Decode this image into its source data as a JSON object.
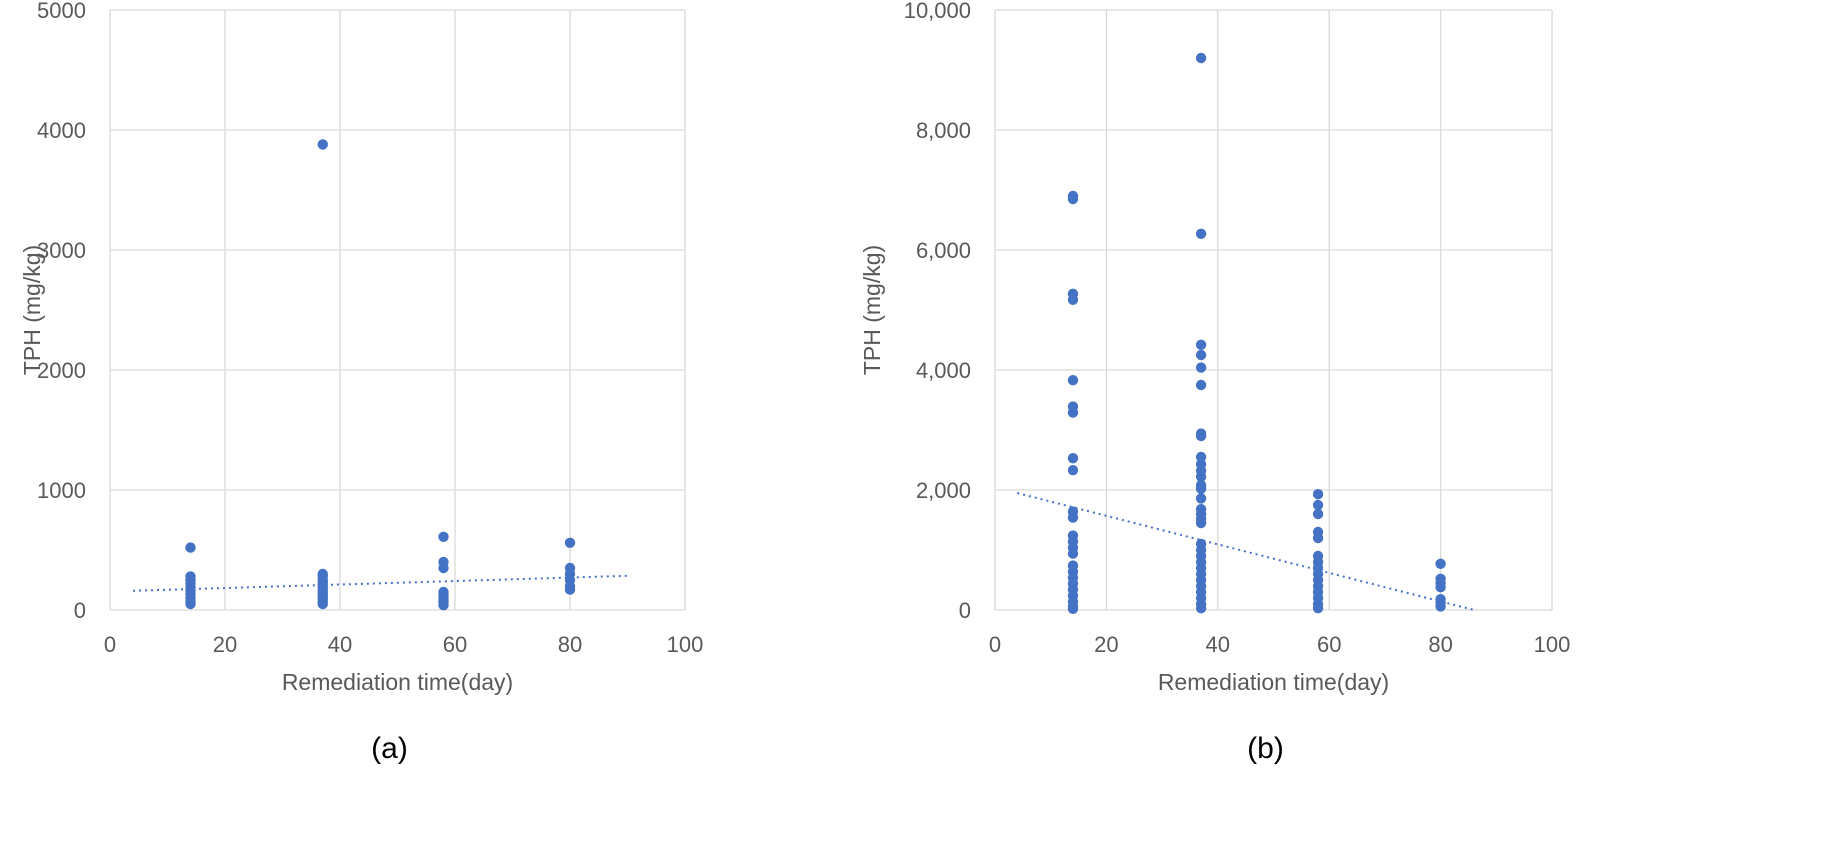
{
  "chart_data": [
    {
      "type": "scatter",
      "panel_label": "(a)",
      "xlabel": "Remediation time(day)",
      "ylabel": "TPH (mg/kg)",
      "xlim": [
        0,
        100
      ],
      "ylim": [
        0,
        5000
      ],
      "x_ticks": [
        "0",
        "20",
        "40",
        "60",
        "80",
        "100"
      ],
      "y_ticks": [
        "0",
        "1000",
        "2000",
        "3000",
        "4000",
        "5000"
      ],
      "grid": true,
      "series": [
        {
          "color": "#4472c4",
          "points": [
            [
              14,
              520
            ],
            [
              14,
              280
            ],
            [
              14,
              250
            ],
            [
              14,
              220
            ],
            [
              14,
              190
            ],
            [
              14,
              160
            ],
            [
              14,
              130
            ],
            [
              14,
              100
            ],
            [
              14,
              70
            ],
            [
              14,
              50
            ],
            [
              37,
              3880
            ],
            [
              37,
              300
            ],
            [
              37,
              280
            ],
            [
              37,
              250
            ],
            [
              37,
              230
            ],
            [
              37,
              210
            ],
            [
              37,
              190
            ],
            [
              37,
              170
            ],
            [
              37,
              150
            ],
            [
              37,
              130
            ],
            [
              37,
              110
            ],
            [
              37,
              90
            ],
            [
              37,
              70
            ],
            [
              37,
              50
            ],
            [
              58,
              610
            ],
            [
              58,
              400
            ],
            [
              58,
              350
            ],
            [
              58,
              150
            ],
            [
              58,
              120
            ],
            [
              58,
              100
            ],
            [
              58,
              80
            ],
            [
              58,
              60
            ],
            [
              58,
              40
            ],
            [
              80,
              560
            ],
            [
              80,
              350
            ],
            [
              80,
              300
            ],
            [
              80,
              250
            ],
            [
              80,
              200
            ],
            [
              80,
              170
            ]
          ]
        }
      ],
      "trendline": {
        "x": [
          4,
          90
        ],
        "y": [
          160,
          285
        ],
        "style": "dotted"
      }
    },
    {
      "type": "scatter",
      "panel_label": "(b)",
      "xlabel": "Remediation time(day)",
      "ylabel": "TPH (mg/kg)",
      "xlim": [
        0,
        100
      ],
      "ylim": [
        0,
        10000
      ],
      "x_ticks": [
        "0",
        "20",
        "40",
        "60",
        "80",
        "100"
      ],
      "y_ticks": [
        "0",
        "2,000",
        "4,000",
        "6,000",
        "8,000",
        "10,000"
      ],
      "grid": true,
      "series": [
        {
          "color": "#4472c4",
          "points": [
            [
              14,
              6900
            ],
            [
              14,
              6850
            ],
            [
              14,
              5270
            ],
            [
              14,
              5170
            ],
            [
              14,
              3830
            ],
            [
              14,
              3390
            ],
            [
              14,
              3290
            ],
            [
              14,
              2530
            ],
            [
              14,
              2330
            ],
            [
              14,
              1640
            ],
            [
              14,
              1540
            ],
            [
              14,
              1240
            ],
            [
              14,
              1140
            ],
            [
              14,
              1040
            ],
            [
              14,
              940
            ],
            [
              14,
              740
            ],
            [
              14,
              640
            ],
            [
              14,
              540
            ],
            [
              14,
              440
            ],
            [
              14,
              340
            ],
            [
              14,
              240
            ],
            [
              14,
              140
            ],
            [
              14,
              60
            ],
            [
              14,
              20
            ],
            [
              37,
              9200
            ],
            [
              37,
              6270
            ],
            [
              37,
              4420
            ],
            [
              37,
              4250
            ],
            [
              37,
              4040
            ],
            [
              37,
              3750
            ],
            [
              37,
              2940
            ],
            [
              37,
              2900
            ],
            [
              37,
              2550
            ],
            [
              37,
              2430
            ],
            [
              37,
              2320
            ],
            [
              37,
              2220
            ],
            [
              37,
              2080
            ],
            [
              37,
              2020
            ],
            [
              37,
              1860
            ],
            [
              37,
              1680
            ],
            [
              37,
              1600
            ],
            [
              37,
              1520
            ],
            [
              37,
              1450
            ],
            [
              37,
              1100
            ],
            [
              37,
              1000
            ],
            [
              37,
              900
            ],
            [
              37,
              800
            ],
            [
              37,
              700
            ],
            [
              37,
              600
            ],
            [
              37,
              500
            ],
            [
              37,
              400
            ],
            [
              37,
              300
            ],
            [
              37,
              200
            ],
            [
              37,
              100
            ],
            [
              37,
              30
            ],
            [
              58,
              1930
            ],
            [
              58,
              1750
            ],
            [
              58,
              1600
            ],
            [
              58,
              1300
            ],
            [
              58,
              1200
            ],
            [
              58,
              900
            ],
            [
              58,
              800
            ],
            [
              58,
              700
            ],
            [
              58,
              600
            ],
            [
              58,
              500
            ],
            [
              58,
              400
            ],
            [
              58,
              300
            ],
            [
              58,
              200
            ],
            [
              58,
              100
            ],
            [
              58,
              30
            ],
            [
              80,
              770
            ],
            [
              80,
              520
            ],
            [
              80,
              450
            ],
            [
              80,
              380
            ],
            [
              80,
              180
            ],
            [
              80,
              130
            ],
            [
              80,
              60
            ]
          ]
        }
      ],
      "trendline": {
        "x": [
          4,
          86
        ],
        "y": [
          1950,
          0
        ],
        "style": "dotted"
      }
    }
  ]
}
